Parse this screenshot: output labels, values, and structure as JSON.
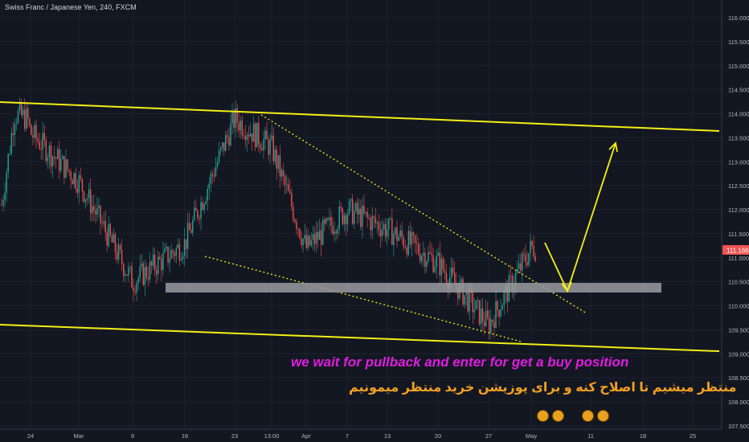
{
  "header": {
    "symbol_title": "Swiss Franc / Japanese Yen, 240, FXCM"
  },
  "annotations": {
    "caption_en": "we wait for pullback and enter for get a buy position",
    "caption_fa": "منتظر میشیم تا اصلاح کنه و برای پوزیشن خرید منتظر میمونیم",
    "icons": [
      "emoji-icon",
      "emoji-icon",
      "emoji-icon",
      "emoji-icon"
    ]
  },
  "colors": {
    "background": "#131722",
    "up_candle": "#26a69a",
    "down_candle": "#ef5350",
    "channel_line": "#f5ef13",
    "zone": "#9a9ba0",
    "caption_en": "#e01ce0",
    "caption_fa": "#f0a020",
    "price_badge": "#ef5350"
  },
  "chart_data": {
    "type": "candlestick",
    "symbol": "CHFJPY",
    "timeframe": "240",
    "x_ticks": [
      "24",
      "Mar",
      "9",
      "16",
      "23",
      "13:00",
      "Apr",
      "7",
      "13",
      "20",
      "27",
      "May",
      "11",
      "18",
      "25"
    ],
    "y_ticks": [
      "116.000",
      "115.500",
      "115.000",
      "114.500",
      "114.000",
      "113.500",
      "113.000",
      "112.500",
      "112.000",
      "111.500",
      "111.000",
      "110.500",
      "110.000",
      "109.500",
      "109.000",
      "108.500",
      "108.000",
      "107.500"
    ],
    "ylim": [
      107.5,
      116.2
    ],
    "last_price": "111.166",
    "price_path": [
      [
        "24",
        113.6
      ],
      [
        "Mar",
        112.6
      ],
      [
        "9",
        110.5
      ],
      [
        "16",
        111.3
      ],
      [
        "23",
        113.9
      ],
      [
        "13:00",
        113.3
      ],
      [
        "Apr",
        111.2
      ],
      [
        "7",
        112.0
      ],
      [
        "13",
        111.6
      ],
      [
        "20",
        110.9
      ],
      [
        "27",
        109.6
      ],
      [
        "May",
        111.2
      ]
    ],
    "channel_upper": [
      [
        "start",
        114.2
      ],
      [
        "end",
        113.6
      ]
    ],
    "channel_lower": [
      [
        "start",
        109.6
      ],
      [
        "end",
        109.0
      ]
    ],
    "support_zone": [
      110.25,
      110.4
    ],
    "forecast_path": [
      111.5,
      110.3,
      113.5
    ]
  }
}
